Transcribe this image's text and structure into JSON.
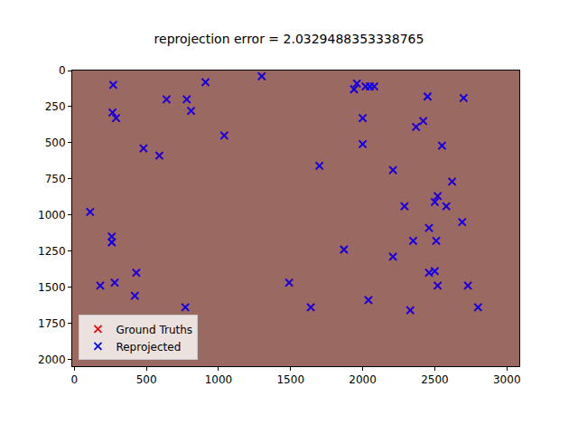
{
  "chart_data": {
    "type": "scatter",
    "title": "reprojection error = 2.0329488353338765",
    "marker": "x",
    "legend": "lower left",
    "grid": false,
    "xlim": [
      0,
      3072
    ],
    "ylim": [
      2048,
      0
    ],
    "xticks": [
      0,
      500,
      1000,
      1500,
      2000,
      2500,
      3000
    ],
    "yticks": [
      0,
      250,
      500,
      750,
      1000,
      1250,
      1500,
      1750,
      2000
    ],
    "series": [
      {
        "name": "Ground Truths",
        "color": "#ff0000",
        "x": [
          270,
          910,
          1300,
          1940,
          1960,
          2020,
          2050,
          2080,
          265,
          290,
          640,
          780,
          810,
          2450,
          2700,
          2000,
          1040,
          2420,
          2370,
          2550,
          480,
          590,
          2000,
          1700,
          2210,
          2620,
          2520,
          2500,
          2580,
          2290,
          110,
          2690,
          2460,
          260,
          260,
          2350,
          2510,
          1870,
          2210,
          430,
          2460,
          2500,
          180,
          280,
          1490,
          2520,
          2730,
          420,
          2040,
          770,
          1640,
          2330,
          2800
        ],
        "y": [
          100,
          80,
          40,
          130,
          90,
          110,
          110,
          110,
          290,
          330,
          200,
          200,
          280,
          180,
          190,
          330,
          450,
          350,
          390,
          520,
          540,
          590,
          510,
          660,
          690,
          770,
          870,
          910,
          940,
          940,
          980,
          1050,
          1090,
          1150,
          1190,
          1180,
          1180,
          1240,
          1290,
          1400,
          1400,
          1390,
          1490,
          1470,
          1470,
          1490,
          1490,
          1560,
          1590,
          1640,
          1640,
          1660,
          1640
        ]
      },
      {
        "name": "Reprojected",
        "color": "#0000ff",
        "x": [
          270,
          910,
          1300,
          1940,
          1960,
          2020,
          2050,
          2080,
          265,
          290,
          640,
          780,
          810,
          2450,
          2700,
          2000,
          1040,
          2420,
          2370,
          2550,
          480,
          590,
          2000,
          1700,
          2210,
          2620,
          2520,
          2500,
          2580,
          2290,
          110,
          2690,
          2460,
          260,
          260,
          2350,
          2510,
          1870,
          2210,
          430,
          2460,
          2500,
          180,
          280,
          1490,
          2520,
          2730,
          420,
          2040,
          770,
          1640,
          2330,
          2800
        ],
        "y": [
          100,
          80,
          40,
          130,
          90,
          110,
          110,
          110,
          290,
          330,
          200,
          200,
          280,
          180,
          190,
          330,
          450,
          350,
          390,
          520,
          540,
          590,
          510,
          660,
          690,
          770,
          870,
          910,
          940,
          940,
          980,
          1050,
          1090,
          1150,
          1190,
          1180,
          1180,
          1240,
          1290,
          1400,
          1400,
          1390,
          1490,
          1470,
          1470,
          1490,
          1490,
          1560,
          1590,
          1640,
          1640,
          1660,
          1640
        ]
      }
    ]
  }
}
